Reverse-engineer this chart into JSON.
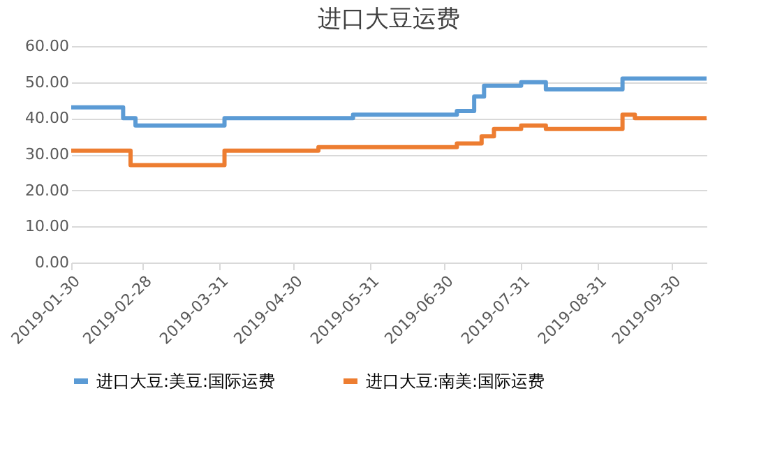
{
  "chart_data": {
    "type": "step",
    "title": "进口大豆运费",
    "xlim": [
      "2019-01-30",
      "2019-10-14"
    ],
    "xticks": [
      "2019-01-30",
      "2019-02-28",
      "2019-03-31",
      "2019-04-30",
      "2019-05-31",
      "2019-06-30",
      "2019-07-31",
      "2019-08-31",
      "2019-09-30"
    ],
    "ylim": [
      0,
      60
    ],
    "yticks": [
      {
        "value": 0,
        "label": "0.00"
      },
      {
        "value": 10,
        "label": "10.00"
      },
      {
        "value": 20,
        "label": "20.00"
      },
      {
        "value": 30,
        "label": "30.00"
      },
      {
        "value": 40,
        "label": "40.00"
      },
      {
        "value": 50,
        "label": "50.00"
      },
      {
        "value": 60,
        "label": "60.00"
      }
    ],
    "grid": "y",
    "legend": "bottom",
    "line_style": "solid",
    "marker": "none",
    "series": [
      {
        "name": "进口大豆:美豆:国际运费",
        "color": "#5b9bd5",
        "x": [
          "2019-01-30",
          "2019-02-20",
          "2019-02-25",
          "2019-04-02",
          "2019-05-24",
          "2019-07-05",
          "2019-07-12",
          "2019-07-16",
          "2019-07-31",
          "2019-08-10",
          "2019-09-10",
          "2019-10-14"
        ],
        "values": [
          43,
          40,
          38,
          40,
          41,
          42,
          46,
          49,
          50,
          48,
          51,
          51
        ]
      },
      {
        "name": "进口大豆:南美:国际运费",
        "color": "#ed7d31",
        "x": [
          "2019-01-30",
          "2019-02-23",
          "2019-04-02",
          "2019-05-10",
          "2019-07-05",
          "2019-07-15",
          "2019-07-20",
          "2019-07-31",
          "2019-08-10",
          "2019-09-10",
          "2019-09-15",
          "2019-10-14"
        ],
        "values": [
          31,
          27,
          31,
          32,
          33,
          35,
          37,
          38,
          37,
          41,
          40,
          40
        ]
      }
    ]
  }
}
